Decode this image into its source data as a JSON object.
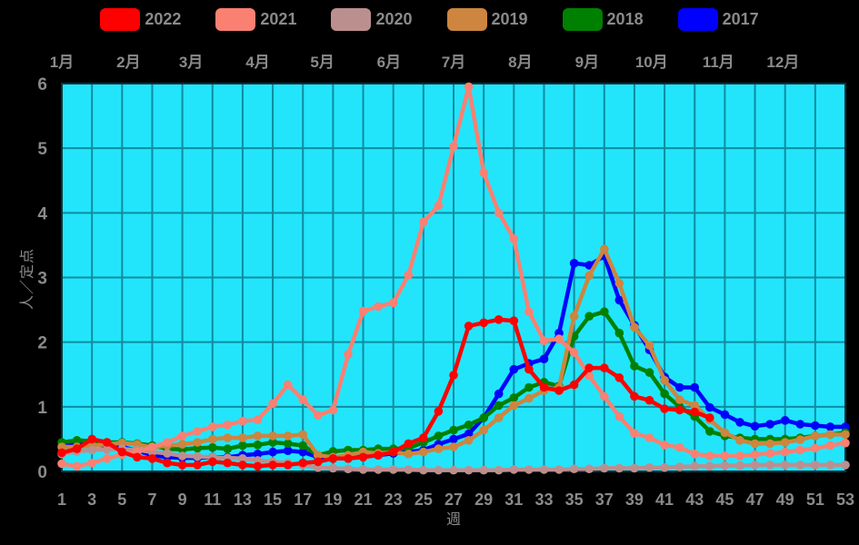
{
  "colors": {
    "background": "#000000",
    "plot_background": "#22e5fc",
    "gridline": "#0f8ca0",
    "plot_border": "#073741",
    "text": "#8a8a8a"
  },
  "legend": {
    "items": [
      {
        "label": "2022",
        "color": "#ff0000"
      },
      {
        "label": "2021",
        "color": "#fa8072"
      },
      {
        "label": "2020",
        "color": "#bc8f8f"
      },
      {
        "label": "2019",
        "color": "#cd853f"
      },
      {
        "label": "2018",
        "color": "#008000"
      },
      {
        "label": "2017",
        "color": "#0000ff"
      }
    ]
  },
  "chart_data": {
    "type": "line",
    "title": "",
    "xlabel": "週",
    "ylabel": "人／定点",
    "grid": true,
    "legend_position": "top",
    "x_range": [
      1,
      53
    ],
    "ylim": [
      0,
      6
    ],
    "y_ticks": [
      0,
      1,
      2,
      3,
      4,
      5,
      6
    ],
    "x_ticks": [
      1,
      3,
      5,
      7,
      9,
      11,
      13,
      15,
      17,
      19,
      21,
      23,
      25,
      27,
      29,
      31,
      33,
      35,
      37,
      39,
      41,
      43,
      45,
      47,
      49,
      51,
      53
    ],
    "month_labels": [
      "1月",
      "2月",
      "3月",
      "4月",
      "5月",
      "6月",
      "7月",
      "8月",
      "9月",
      "10月",
      "11月",
      "12月"
    ],
    "month_start_weeks": [
      1,
      5.43,
      9.57,
      14.0,
      18.29,
      22.71,
      27.0,
      31.43,
      35.86,
      40.14,
      44.57,
      48.86
    ],
    "draw_order": [
      "2017",
      "2018",
      "2019",
      "2020",
      "2021",
      "2022"
    ],
    "series": [
      {
        "name": "2022",
        "color": "#ff0000",
        "start_week": 1,
        "values": [
          0.29,
          0.35,
          0.5,
          0.45,
          0.3,
          0.22,
          0.2,
          0.13,
          0.1,
          0.1,
          0.15,
          0.13,
          0.1,
          0.08,
          0.1,
          0.1,
          0.13,
          0.15,
          0.2,
          0.2,
          0.22,
          0.25,
          0.3,
          0.43,
          0.52,
          0.93,
          1.49,
          2.25,
          2.3,
          2.35,
          2.33,
          1.58,
          1.3,
          1.25,
          1.34,
          1.6,
          1.6,
          1.45,
          1.16,
          1.1,
          0.97,
          0.95,
          0.92,
          0.83
        ]
      },
      {
        "name": "2021",
        "color": "#fa8072",
        "start_week": 1,
        "values": [
          0.12,
          0.08,
          0.13,
          0.2,
          0.26,
          0.3,
          0.38,
          0.45,
          0.55,
          0.62,
          0.69,
          0.72,
          0.78,
          0.8,
          1.05,
          1.34,
          1.11,
          0.87,
          0.95,
          1.81,
          2.48,
          2.55,
          2.61,
          3.04,
          3.86,
          4.11,
          5.03,
          5.95,
          4.62,
          4.0,
          3.6,
          2.47,
          2.02,
          2.05,
          1.84,
          1.48,
          1.16,
          0.85,
          0.59,
          0.52,
          0.41,
          0.37,
          0.27,
          0.24,
          0.24,
          0.24,
          0.26,
          0.28,
          0.3,
          0.33,
          0.36,
          0.4,
          0.44
        ]
      },
      {
        "name": "2020",
        "color": "#bc8f8f",
        "start_week": 1,
        "values": [
          0.27,
          0.31,
          0.33,
          0.34,
          0.35,
          0.33,
          0.3,
          0.28,
          0.24,
          0.23,
          0.22,
          0.21,
          0.2,
          0.17,
          0.15,
          0.13,
          0.1,
          0.06,
          0.05,
          0.04,
          0.03,
          0.03,
          0.03,
          0.03,
          0.02,
          0.02,
          0.02,
          0.02,
          0.02,
          0.02,
          0.03,
          0.03,
          0.03,
          0.03,
          0.04,
          0.04,
          0.05,
          0.05,
          0.05,
          0.06,
          0.06,
          0.07,
          0.08,
          0.08,
          0.09,
          0.09,
          0.1,
          0.1,
          0.1,
          0.1,
          0.1,
          0.1,
          0.1
        ]
      },
      {
        "name": "2019",
        "color": "#cd853f",
        "start_week": 1,
        "values": [
          0.38,
          0.38,
          0.4,
          0.42,
          0.44,
          0.42,
          0.37,
          0.4,
          0.42,
          0.45,
          0.5,
          0.52,
          0.52,
          0.55,
          0.55,
          0.55,
          0.57,
          0.25,
          0.22,
          0.25,
          0.3,
          0.28,
          0.3,
          0.27,
          0.3,
          0.35,
          0.38,
          0.48,
          0.64,
          0.83,
          1.02,
          1.13,
          1.25,
          1.3,
          2.4,
          3.03,
          3.44,
          2.91,
          2.23,
          1.95,
          1.41,
          1.11,
          1.02,
          0.8,
          0.6,
          0.48,
          0.43,
          0.43,
          0.45,
          0.49,
          0.55,
          0.57,
          0.57
        ]
      },
      {
        "name": "2018",
        "color": "#008000",
        "start_week": 1,
        "values": [
          0.45,
          0.48,
          0.47,
          0.45,
          0.45,
          0.43,
          0.4,
          0.35,
          0.34,
          0.36,
          0.37,
          0.35,
          0.4,
          0.41,
          0.45,
          0.43,
          0.4,
          0.25,
          0.31,
          0.33,
          0.33,
          0.35,
          0.35,
          0.36,
          0.45,
          0.55,
          0.64,
          0.72,
          0.83,
          1.02,
          1.14,
          1.3,
          1.38,
          1.32,
          2.09,
          2.4,
          2.47,
          2.14,
          1.63,
          1.53,
          1.2,
          1.0,
          0.85,
          0.62,
          0.55,
          0.52,
          0.5,
          0.5,
          0.5,
          0.52,
          0.55,
          0.57,
          0.6
        ]
      },
      {
        "name": "2017",
        "color": "#0000ff",
        "start_week": 1,
        "values": [
          0.4,
          0.42,
          0.42,
          0.4,
          0.38,
          0.32,
          0.25,
          0.22,
          0.21,
          0.21,
          0.22,
          0.22,
          0.25,
          0.27,
          0.3,
          0.32,
          0.3,
          0.22,
          0.2,
          0.22,
          0.25,
          0.25,
          0.28,
          0.3,
          0.33,
          0.42,
          0.5,
          0.58,
          0.83,
          1.2,
          1.58,
          1.67,
          1.74,
          2.14,
          3.22,
          3.19,
          3.33,
          2.65,
          2.26,
          1.88,
          1.46,
          1.3,
          1.3,
          0.99,
          0.88,
          0.76,
          0.7,
          0.73,
          0.79,
          0.73,
          0.71,
          0.69,
          0.69
        ]
      }
    ]
  }
}
